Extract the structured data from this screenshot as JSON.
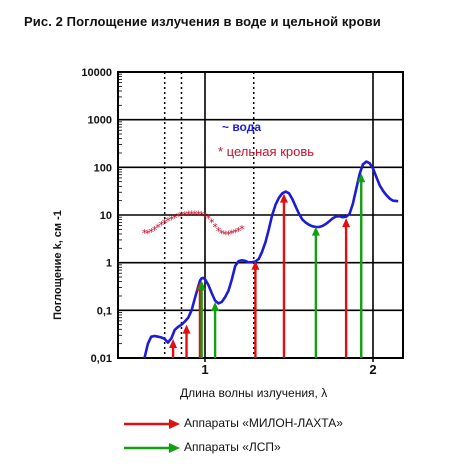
{
  "figure": {
    "title": "Рис. 2 Поглощение излучения в воде и цельной крови"
  },
  "chart_data": {
    "type": "line",
    "ylabel": "Поглощение k, см -1",
    "xlabel": "Длина волны излучения, λ",
    "yscale": "log",
    "ylim": [
      0.01,
      10000
    ],
    "xlim": [
      0.63,
      2.15
    ],
    "ytick_labels": [
      "0,01",
      "0,1",
      "1",
      "10",
      "100",
      "1000",
      "10000"
    ],
    "ytick_values": [
      0.01,
      0.1,
      1,
      10,
      100,
      1000,
      10000
    ],
    "xtick_labels": [
      "1",
      "2"
    ],
    "xtick_values": [
      1,
      2
    ],
    "grid": {
      "horizontal": true,
      "vertical_dotted_x": [
        0.76,
        0.86,
        1.29
      ],
      "vertical_solid_x": [
        1.0,
        2.0
      ]
    },
    "series": [
      {
        "name": "~ вода",
        "color": "#1c1cd6",
        "style": "line",
        "x": [
          0.64,
          0.66,
          0.68,
          0.7,
          0.72,
          0.74,
          0.76,
          0.78,
          0.8,
          0.82,
          0.84,
          0.86,
          0.88,
          0.9,
          0.92,
          0.94,
          0.96,
          0.97,
          0.98,
          0.99,
          1.0,
          1.02,
          1.04,
          1.06,
          1.08,
          1.1,
          1.12,
          1.14,
          1.16,
          1.18,
          1.2,
          1.22,
          1.24,
          1.26,
          1.28,
          1.3,
          1.32,
          1.34,
          1.36,
          1.38,
          1.4,
          1.42,
          1.44,
          1.46,
          1.48,
          1.5,
          1.52,
          1.54,
          1.56,
          1.58,
          1.6,
          1.62,
          1.64,
          1.66,
          1.68,
          1.7,
          1.72,
          1.74,
          1.76,
          1.78,
          1.8,
          1.82,
          1.84,
          1.86,
          1.88,
          1.9,
          1.92,
          1.94,
          1.96,
          1.98,
          2.0,
          2.02,
          2.04,
          2.06,
          2.08,
          2.1,
          2.12,
          2.15
        ],
        "y": [
          0.01,
          0.02,
          0.028,
          0.029,
          0.028,
          0.027,
          0.025,
          0.021,
          0.026,
          0.039,
          0.045,
          0.05,
          0.058,
          0.07,
          0.1,
          0.18,
          0.32,
          0.42,
          0.47,
          0.48,
          0.45,
          0.34,
          0.23,
          0.16,
          0.14,
          0.15,
          0.19,
          0.26,
          0.45,
          0.85,
          1.08,
          1.12,
          1.09,
          1.02,
          1.02,
          1.06,
          1.2,
          1.7,
          2.7,
          5.0,
          10.0,
          16.5,
          23.0,
          28.5,
          31.0,
          28.5,
          21.5,
          15.0,
          10.5,
          8.0,
          6.9,
          6.2,
          5.8,
          5.6,
          5.6,
          5.9,
          6.5,
          7.4,
          8.5,
          9.3,
          9.4,
          9.0,
          9.2,
          10.5,
          17.0,
          35.0,
          72.0,
          115.0,
          132.0,
          122.0,
          95.0,
          62.0,
          42.0,
          32.0,
          26.0,
          22.0,
          20.0,
          19.5
        ]
      },
      {
        "name": "* цельная кровь",
        "color": "#c8102e",
        "style": "star",
        "x": [
          0.64,
          0.66,
          0.68,
          0.7,
          0.72,
          0.74,
          0.76,
          0.78,
          0.8,
          0.82,
          0.84,
          0.86,
          0.88,
          0.9,
          0.92,
          0.94,
          0.96,
          0.98,
          1.0,
          1.02,
          1.04,
          1.06,
          1.08,
          1.1,
          1.12,
          1.14,
          1.16,
          1.18,
          1.2,
          1.22
        ],
        "y": [
          4.2,
          4.1,
          4.4,
          4.9,
          5.5,
          6.1,
          6.8,
          7.4,
          8.0,
          8.6,
          9.2,
          9.7,
          10.0,
          10.2,
          10.3,
          10.3,
          10.2,
          9.9,
          9.3,
          8.4,
          7.0,
          5.6,
          4.6,
          4.1,
          3.9,
          3.9,
          4.1,
          4.3,
          4.6,
          5.1
        ]
      }
    ],
    "legend_in_plot": [
      "~ вода",
      "* цельная кровь"
    ],
    "arrows": [
      {
        "group": "МИЛОН-ЛАХТА",
        "color": "#e01010",
        "x": 0.81,
        "y_top": 0.025
      },
      {
        "group": "МИЛОН-ЛАХТА",
        "color": "#e01010",
        "x": 0.89,
        "y_top": 0.05
      },
      {
        "group": "МИЛОН-ЛАХТА",
        "color": "#e01010",
        "x": 0.97,
        "y_top": 0.4
      },
      {
        "group": "ЛСП",
        "color": "#10a010",
        "x": 0.98,
        "y_top": 0.42
      },
      {
        "group": "ЛСП",
        "color": "#10a010",
        "x": 1.06,
        "y_top": 0.15
      },
      {
        "group": "МИЛОН-ЛАХТА",
        "color": "#e01010",
        "x": 1.3,
        "y_top": 1.1
      },
      {
        "group": "МИЛОН-ЛАХТА",
        "color": "#e01010",
        "x": 1.47,
        "y_top": 28.0
      },
      {
        "group": "ЛСП",
        "color": "#10a010",
        "x": 1.66,
        "y_top": 5.7
      },
      {
        "group": "МИЛОН-ЛАХТА",
        "color": "#e01010",
        "x": 1.84,
        "y_top": 8.6
      },
      {
        "group": "ЛСП",
        "color": "#10a010",
        "x": 1.93,
        "y_top": 75.0
      }
    ]
  },
  "legend": {
    "items": [
      {
        "label": "Аппараты «МИЛОН-ЛАХТА»",
        "color": "#e01010"
      },
      {
        "label": "Аппараты «ЛСП»",
        "color": "#10a010"
      }
    ]
  }
}
